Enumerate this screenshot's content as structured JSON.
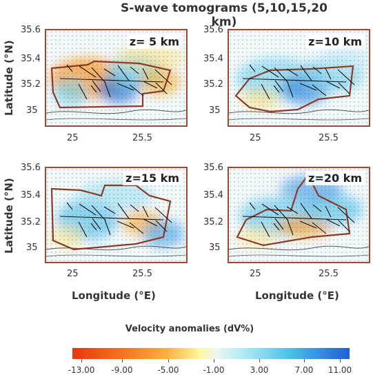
{
  "title": "S-wave tomograms (5,10,15,20 km)",
  "y_axis_label": "Latitude (°N)",
  "x_axis_label": "Longitude (°E)",
  "lat_ticks": [
    "35.6",
    "35.4",
    "35.2",
    "35"
  ],
  "lon_ticks": [
    "25",
    "25.5"
  ],
  "panels": [
    {
      "depth_label": "z= 5 km"
    },
    {
      "depth_label": "z=10 km"
    },
    {
      "depth_label": "z=15 km"
    },
    {
      "depth_label": "z=20 km"
    }
  ],
  "colorbar": {
    "title": "Velocity anomalies (dV%)",
    "labels": [
      "-13.00",
      "-9.00",
      "-5.00",
      "-1.00",
      "3.00",
      "7.00",
      "11.00"
    ],
    "colors": [
      "#e8360c",
      "#f7731f",
      "#fbb040",
      "#fff7a0",
      "#eaf7f4",
      "#aeeaf4",
      "#4fc2ea",
      "#1e5fd6"
    ]
  },
  "colors": {
    "frame": "#a0472f",
    "outline": "#8b3a2a",
    "fault": "#111111",
    "coast": "#555555"
  }
}
